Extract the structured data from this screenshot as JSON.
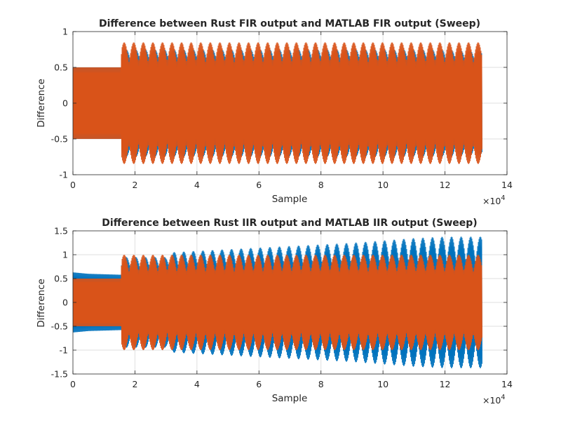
{
  "chart_data": [
    {
      "type": "line",
      "title": "Difference between Rust FIR output and MATLAB FIR output (Sweep)",
      "xlabel": "Sample",
      "ylabel": "Difference",
      "xlim": [
        0,
        140000
      ],
      "ylim": [
        -1,
        1
      ],
      "xticks": [
        0,
        20000,
        40000,
        60000,
        80000,
        100000,
        120000,
        140000
      ],
      "xtick_labels": [
        "0",
        "2",
        "4",
        "6",
        "8",
        "10",
        "12",
        "14"
      ],
      "yticks": [
        -1,
        -0.5,
        0,
        0.5,
        1
      ],
      "ytick_labels": [
        "-1",
        "-0.5",
        "0",
        "0.5",
        "1"
      ],
      "x_exponent": {
        "base": "×10",
        "power": "4"
      },
      "grid": true,
      "series": [
        {
          "color": "#0072bd",
          "x": [
            0,
            1000,
            15500,
            15700,
            30000,
            60000,
            90000,
            110000,
            120000,
            132000
          ],
          "envelope_max": [
            0.5,
            0.5,
            0.5,
            0.75,
            0.75,
            0.75,
            0.75,
            0.75,
            0.75,
            0.72
          ],
          "envelope_min": [
            -0.5,
            -0.5,
            -0.5,
            -0.75,
            -0.75,
            -0.75,
            -0.75,
            -0.75,
            -0.75,
            -0.72
          ]
        },
        {
          "color": "#d95319",
          "x": [
            0,
            1000,
            15500,
            15700,
            30000,
            60000,
            90000,
            110000,
            120000,
            132000
          ],
          "envelope_max": [
            0.5,
            0.5,
            0.5,
            0.85,
            0.85,
            0.85,
            0.85,
            0.85,
            0.85,
            0.85
          ],
          "envelope_min": [
            -0.5,
            -0.5,
            -0.5,
            -0.85,
            -0.85,
            -0.85,
            -0.85,
            -0.85,
            -0.85,
            -0.85
          ]
        }
      ]
    },
    {
      "type": "line",
      "title": "Difference between Rust IIR output and MATLAB IIR output (Sweep)",
      "xlabel": "Sample",
      "ylabel": "Difference",
      "xlim": [
        0,
        140000
      ],
      "ylim": [
        -1.5,
        1.5
      ],
      "xticks": [
        0,
        20000,
        40000,
        60000,
        80000,
        100000,
        120000,
        140000
      ],
      "xtick_labels": [
        "0",
        "2",
        "4",
        "6",
        "8",
        "10",
        "12",
        "14"
      ],
      "yticks": [
        -1.5,
        -1,
        -0.5,
        0,
        0.5,
        1,
        1.5
      ],
      "ytick_labels": [
        "-1.5",
        "-1",
        "-0.5",
        "0",
        "0.5",
        "1",
        "1.5"
      ],
      "x_exponent": {
        "base": "×10",
        "power": "4"
      },
      "grid": true,
      "series": [
        {
          "color": "#0072bd",
          "x": [
            0,
            5000,
            15500,
            15700,
            30000,
            31000,
            60000,
            90000,
            110000,
            120000,
            132000
          ],
          "envelope_max": [
            0.63,
            0.6,
            0.58,
            0.95,
            0.95,
            1.05,
            1.15,
            1.25,
            1.35,
            1.38,
            1.38
          ],
          "envelope_min": [
            -0.63,
            -0.6,
            -0.58,
            -0.95,
            -0.95,
            -1.05,
            -1.15,
            -1.25,
            -1.35,
            -1.38,
            -1.38
          ]
        },
        {
          "color": "#d95319",
          "x": [
            0,
            5000,
            15500,
            15700,
            30000,
            60000,
            90000,
            110000,
            120000,
            132000
          ],
          "envelope_max": [
            0.5,
            0.5,
            0.5,
            1.0,
            1.0,
            1.0,
            1.0,
            1.0,
            1.0,
            1.0
          ],
          "envelope_min": [
            -0.5,
            -0.5,
            -0.5,
            -1.0,
            -1.0,
            -1.0,
            -1.0,
            -1.0,
            -1.0,
            -1.0
          ]
        }
      ]
    }
  ]
}
